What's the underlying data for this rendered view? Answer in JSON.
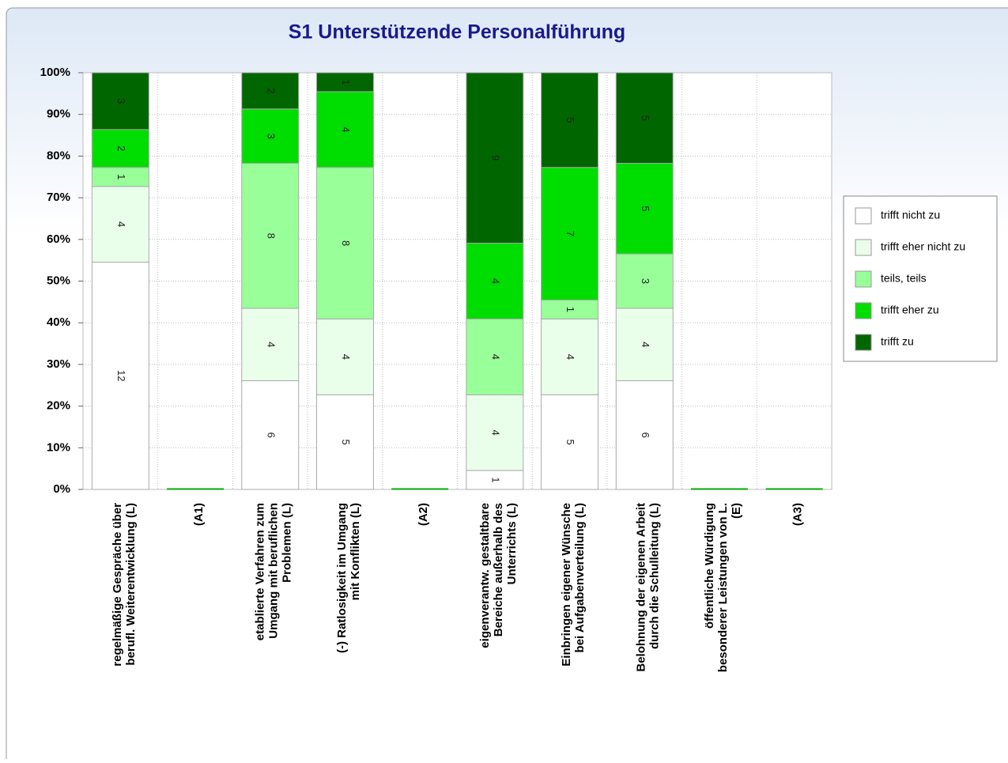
{
  "chart_data": {
    "type": "bar",
    "stack": "percent",
    "title": "S1 Unterstützende Personalführung",
    "categories": [
      [
        "regelmäßige Gespräche über",
        "berufl. Weiterentwicklung (L)"
      ],
      [
        "(A1)"
      ],
      [
        "etablierte Verfahren zum",
        "Umgang mit beruflichen",
        "Problemen (L)"
      ],
      [
        "(-) Ratlosigkeit im Umgang",
        "mit Konflikten (L)"
      ],
      [
        "(A2)"
      ],
      [
        "eigenverantw. gestaltbare",
        "Bereiche außerhalb des",
        "Unterrichts (L)"
      ],
      [
        "Einbringen eigener Wünsche",
        "bei Aufgabenverteilung (L)"
      ],
      [
        "Belohnung der eigenen Arbeit",
        "durch die Schulleitung (L)"
      ],
      [
        "öffentliche Würdigung",
        "besonderer Leistungen von L.",
        "(E)"
      ],
      [
        "(A3)"
      ]
    ],
    "series": [
      {
        "name": "trifft nicht zu",
        "color": "#ffffff",
        "values": [
          12,
          null,
          6,
          5,
          null,
          1,
          5,
          6,
          null,
          null
        ]
      },
      {
        "name": "trifft eher nicht zu",
        "color": "#eaffea",
        "values": [
          4,
          null,
          4,
          4,
          null,
          4,
          4,
          4,
          null,
          null
        ]
      },
      {
        "name": "teils, teils",
        "color": "#99ff99",
        "values": [
          1,
          null,
          8,
          8,
          null,
          4,
          1,
          3,
          null,
          null
        ]
      },
      {
        "name": "trifft eher zu",
        "color": "#00dd00",
        "values": [
          2,
          null,
          3,
          4,
          null,
          4,
          7,
          5,
          null,
          null
        ]
      },
      {
        "name": "trifft zu",
        "color": "#006600",
        "values": [
          3,
          null,
          2,
          1,
          null,
          9,
          5,
          5,
          null,
          null
        ]
      }
    ],
    "ylim": [
      0,
      100
    ],
    "yticks": [
      {
        "value": 0,
        "label": "0%"
      },
      {
        "value": 10,
        "label": "10%"
      },
      {
        "value": 20,
        "label": "20%"
      },
      {
        "value": 30,
        "label": "30%"
      },
      {
        "value": 40,
        "label": "40%"
      },
      {
        "value": 50,
        "label": "50%"
      },
      {
        "value": 60,
        "label": "60%"
      },
      {
        "value": 70,
        "label": "70%"
      },
      {
        "value": 80,
        "label": "80%"
      },
      {
        "value": 90,
        "label": "90%"
      },
      {
        "value": 100,
        "label": "100%"
      }
    ],
    "grid": true,
    "legend": "right"
  }
}
